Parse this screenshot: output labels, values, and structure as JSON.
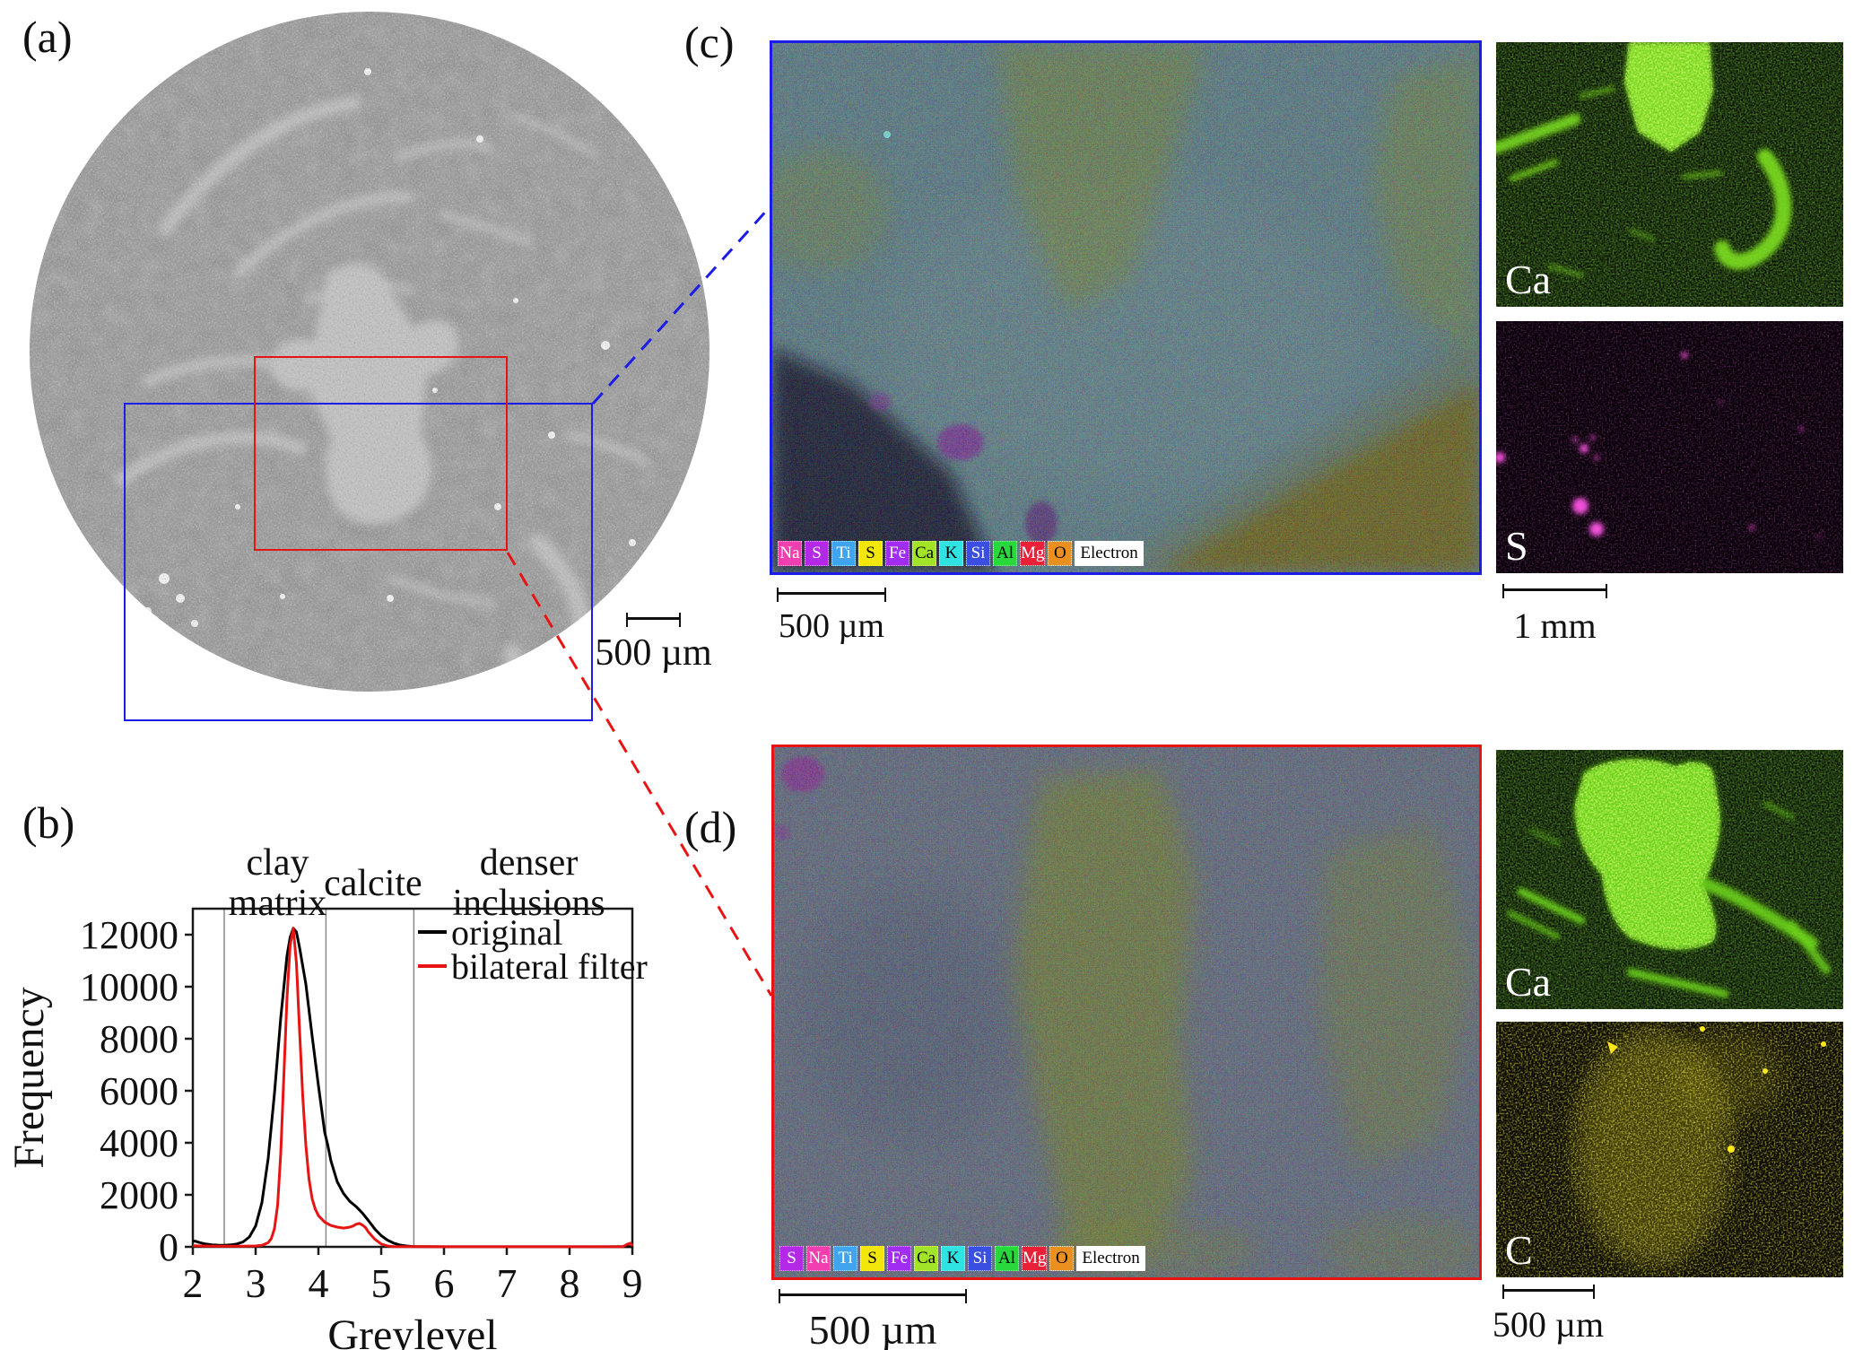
{
  "colors": {
    "roi_blue": "#1c1ce8",
    "roi_red": "#e81414"
  },
  "panel_a": {
    "label": "(a)",
    "scalebar_label": "500 µm"
  },
  "panel_b": {
    "label": "(b)"
  },
  "chart_data": {
    "type": "line",
    "title": "",
    "xlabel": "Greylevel",
    "ylabel": "Frequency",
    "xlim": [
      2,
      9
    ],
    "ylim": [
      0,
      13000
    ],
    "xticks": [
      2,
      3,
      4,
      5,
      6,
      7,
      8,
      9
    ],
    "yticks": [
      0,
      2000,
      4000,
      6000,
      8000,
      10000,
      12000
    ],
    "grid": false,
    "legend_position": "top-right",
    "region_boundaries": [
      2.5,
      4.12,
      5.52
    ],
    "region_labels": [
      {
        "text": "clay\nmatrix",
        "x": 3.35
      },
      {
        "text": "calcite",
        "x": 4.87
      },
      {
        "text": "denser\ninclusions",
        "x": 7.35
      }
    ],
    "series": [
      {
        "name": "original",
        "color": "#000000",
        "points": [
          [
            2.0,
            230
          ],
          [
            2.05,
            210
          ],
          [
            2.1,
            170
          ],
          [
            2.2,
            110
          ],
          [
            2.3,
            80
          ],
          [
            2.4,
            65
          ],
          [
            2.5,
            60
          ],
          [
            2.6,
            75
          ],
          [
            2.7,
            110
          ],
          [
            2.8,
            190
          ],
          [
            2.9,
            380
          ],
          [
            3.0,
            800
          ],
          [
            3.1,
            1700
          ],
          [
            3.2,
            3400
          ],
          [
            3.3,
            5900
          ],
          [
            3.4,
            8800
          ],
          [
            3.5,
            11200
          ],
          [
            3.55,
            11900
          ],
          [
            3.6,
            12250
          ],
          [
            3.65,
            12100
          ],
          [
            3.7,
            11500
          ],
          [
            3.8,
            10100
          ],
          [
            3.9,
            8100
          ],
          [
            4.0,
            6200
          ],
          [
            4.1,
            4400
          ],
          [
            4.15,
            3900
          ],
          [
            4.2,
            3300
          ],
          [
            4.3,
            2500
          ],
          [
            4.4,
            2050
          ],
          [
            4.5,
            1750
          ],
          [
            4.6,
            1550
          ],
          [
            4.7,
            1300
          ],
          [
            4.8,
            1000
          ],
          [
            4.9,
            680
          ],
          [
            5.0,
            430
          ],
          [
            5.1,
            260
          ],
          [
            5.2,
            140
          ],
          [
            5.3,
            70
          ],
          [
            5.4,
            35
          ],
          [
            5.5,
            15
          ],
          [
            5.7,
            8
          ],
          [
            6.0,
            5
          ],
          [
            6.5,
            5
          ],
          [
            7.0,
            5
          ],
          [
            7.5,
            5
          ],
          [
            8.0,
            5
          ],
          [
            8.5,
            5
          ],
          [
            9.0,
            8
          ]
        ]
      },
      {
        "name": "bilateral filter",
        "color": "#e81414",
        "points": [
          [
            2.0,
            40
          ],
          [
            2.2,
            30
          ],
          [
            2.4,
            25
          ],
          [
            2.6,
            25
          ],
          [
            2.8,
            25
          ],
          [
            3.0,
            35
          ],
          [
            3.1,
            60
          ],
          [
            3.2,
            160
          ],
          [
            3.25,
            320
          ],
          [
            3.3,
            700
          ],
          [
            3.35,
            1600
          ],
          [
            3.4,
            3600
          ],
          [
            3.45,
            6600
          ],
          [
            3.5,
            9600
          ],
          [
            3.55,
            11600
          ],
          [
            3.6,
            12250
          ],
          [
            3.65,
            10900
          ],
          [
            3.7,
            8300
          ],
          [
            3.75,
            5800
          ],
          [
            3.8,
            3900
          ],
          [
            3.85,
            2600
          ],
          [
            3.9,
            1850
          ],
          [
            3.95,
            1450
          ],
          [
            4.0,
            1200
          ],
          [
            4.1,
            950
          ],
          [
            4.2,
            820
          ],
          [
            4.3,
            760
          ],
          [
            4.4,
            720
          ],
          [
            4.5,
            760
          ],
          [
            4.55,
            800
          ],
          [
            4.6,
            870
          ],
          [
            4.65,
            900
          ],
          [
            4.7,
            840
          ],
          [
            4.75,
            740
          ],
          [
            4.8,
            560
          ],
          [
            4.9,
            290
          ],
          [
            5.0,
            110
          ],
          [
            5.1,
            35
          ],
          [
            5.2,
            12
          ],
          [
            5.5,
            6
          ],
          [
            6.0,
            5
          ],
          [
            7.0,
            5
          ],
          [
            8.0,
            5
          ],
          [
            8.85,
            8
          ],
          [
            8.92,
            100
          ],
          [
            8.97,
            140
          ],
          [
            9.0,
            30
          ]
        ]
      }
    ]
  },
  "panel_c": {
    "label": "(c)",
    "scalebar_label": "500 µm",
    "submap_scalebar_label": "1 mm",
    "submaps": [
      {
        "label": "Ca"
      },
      {
        "label": "S"
      }
    ],
    "elements": [
      {
        "symbol": "Na",
        "bg": "#f23fb0",
        "fg": "#ffffff"
      },
      {
        "symbol": "S",
        "bg": "#b429e8",
        "fg": "#ffffff"
      },
      {
        "symbol": "Ti",
        "bg": "#41a4ee",
        "fg": "#ffffff"
      },
      {
        "symbol": "S",
        "bg": "#f2e60a",
        "fg": "#000000"
      },
      {
        "symbol": "Fe",
        "bg": "#a12cf2",
        "fg": "#ffffff"
      },
      {
        "symbol": "Ca",
        "bg": "#a1e428",
        "fg": "#000000"
      },
      {
        "symbol": "K",
        "bg": "#2fe3e3",
        "fg": "#000000"
      },
      {
        "symbol": "Si",
        "bg": "#3a4fe0",
        "fg": "#ffffff"
      },
      {
        "symbol": "Al",
        "bg": "#28d83c",
        "fg": "#000000"
      },
      {
        "symbol": "Mg",
        "bg": "#ea1f38",
        "fg": "#ffffff"
      },
      {
        "symbol": "O",
        "bg": "#eb8f1f",
        "fg": "#000000"
      },
      {
        "symbol": "Electron",
        "bg": "#ffffff",
        "fg": "#000000",
        "wide": true
      }
    ]
  },
  "panel_d": {
    "label": "(d)",
    "scalebar_label": "500 µm",
    "submap_scalebar_label": "500 µm",
    "submaps": [
      {
        "label": "Ca"
      },
      {
        "label": "C"
      }
    ],
    "elements": [
      {
        "symbol": "S",
        "bg": "#b429e8",
        "fg": "#ffffff"
      },
      {
        "symbol": "Na",
        "bg": "#f23fb0",
        "fg": "#ffffff"
      },
      {
        "symbol": "Ti",
        "bg": "#41a4ee",
        "fg": "#ffffff"
      },
      {
        "symbol": "S",
        "bg": "#f2e60a",
        "fg": "#000000"
      },
      {
        "symbol": "Fe",
        "bg": "#a12cf2",
        "fg": "#ffffff"
      },
      {
        "symbol": "Ca",
        "bg": "#a1e428",
        "fg": "#000000"
      },
      {
        "symbol": "K",
        "bg": "#2fe3e3",
        "fg": "#000000"
      },
      {
        "symbol": "Si",
        "bg": "#3a4fe0",
        "fg": "#ffffff"
      },
      {
        "symbol": "Al",
        "bg": "#28d83c",
        "fg": "#000000"
      },
      {
        "symbol": "Mg",
        "bg": "#ea1f38",
        "fg": "#ffffff"
      },
      {
        "symbol": "O",
        "bg": "#eb8f1f",
        "fg": "#000000"
      },
      {
        "symbol": "Electron",
        "bg": "#ffffff",
        "fg": "#000000",
        "wide": true
      }
    ]
  }
}
